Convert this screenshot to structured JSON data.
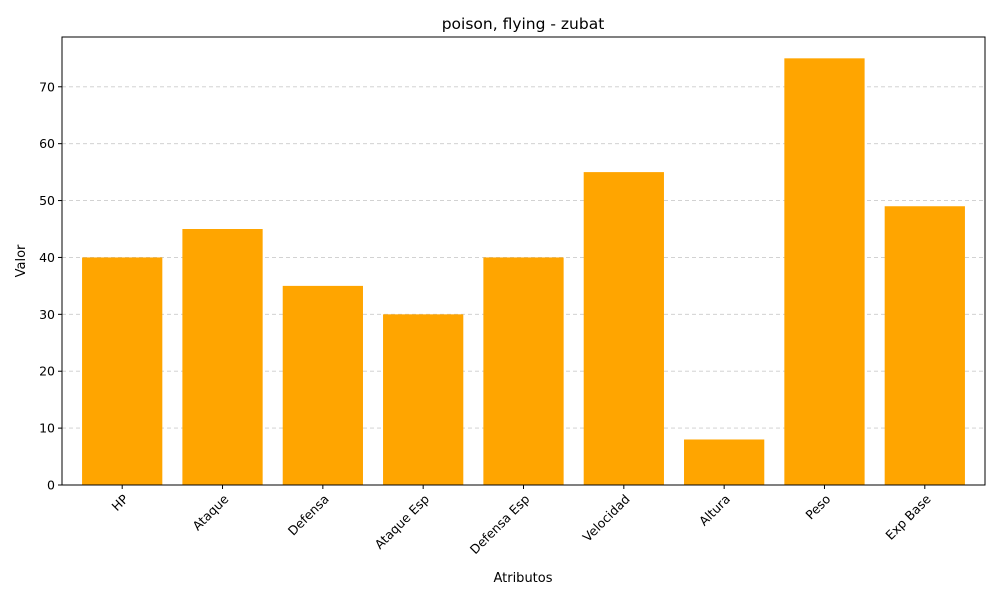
{
  "chart_data": {
    "type": "bar",
    "title": "poison, flying - zubat",
    "xlabel": "Atributos",
    "ylabel": "Valor",
    "categories": [
      "HP",
      "Ataque",
      "Defensa",
      "Ataque Esp",
      "Defensa Esp",
      "Velocidad",
      "Altura",
      "Peso",
      "Exp Base"
    ],
    "values": [
      40,
      45,
      35,
      30,
      40,
      55,
      8,
      75,
      49
    ],
    "ylim": [
      0,
      78.75
    ],
    "yticks": [
      0,
      10,
      20,
      30,
      40,
      50,
      60,
      70
    ],
    "bar_color": "#ffa500",
    "grid": "y, dashed",
    "x_tick_rotation_deg": 45
  }
}
